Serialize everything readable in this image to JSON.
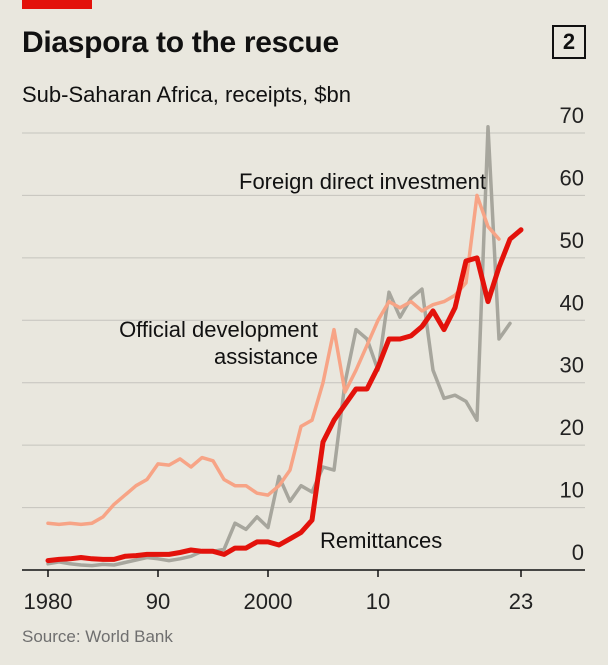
{
  "header": {
    "title": "Diaspora to the rescue",
    "chart_number": "2"
  },
  "subtitle": "Sub-Saharan Africa, receipts, $bn",
  "source": "Source: World Bank",
  "colors": {
    "fdi": "#a7a69d",
    "oda": "#f7a486",
    "remittances": "#e3120b",
    "background": "#e9e7de",
    "grid": "#c5c4bd"
  },
  "chart_data": {
    "type": "line",
    "title": "Diaspora to the rescue",
    "subtitle": "Sub-Saharan Africa, receipts, $bn",
    "xlabel": "",
    "ylabel": "$bn",
    "xlim": [
      1980,
      2023
    ],
    "ylim": [
      0,
      70
    ],
    "x_ticks": [
      1980,
      1990,
      2000,
      2010,
      2023
    ],
    "x_tick_labels": [
      "1980",
      "90",
      "2000",
      "10",
      "23"
    ],
    "y_ticks": [
      0,
      10,
      20,
      30,
      40,
      50,
      60,
      70
    ],
    "y_tick_labels": [
      "0",
      "10",
      "20",
      "30",
      "40",
      "50",
      "60",
      "70"
    ],
    "annotations": {
      "fdi": "Foreign direct investment",
      "oda_line1": "Official development",
      "oda_line2": "assistance",
      "remittances": "Remittances"
    },
    "x": [
      1980,
      1981,
      1982,
      1983,
      1984,
      1985,
      1986,
      1987,
      1988,
      1989,
      1990,
      1991,
      1992,
      1993,
      1994,
      1995,
      1996,
      1997,
      1998,
      1999,
      2000,
      2001,
      2002,
      2003,
      2004,
      2005,
      2006,
      2007,
      2008,
      2009,
      2010,
      2011,
      2012,
      2013,
      2014,
      2015,
      2016,
      2017,
      2018,
      2019,
      2020,
      2021,
      2022,
      2023
    ],
    "series": [
      {
        "name": "Foreign direct investment",
        "key": "fdi",
        "values": [
          1.0,
          1.3,
          1.0,
          0.8,
          0.7,
          0.9,
          0.8,
          1.2,
          1.6,
          2.0,
          1.8,
          1.5,
          1.8,
          2.2,
          3.0,
          3.0,
          3.3,
          7.5,
          6.5,
          8.5,
          6.8,
          15.0,
          11.0,
          13.5,
          12.5,
          16.5,
          16.0,
          30.0,
          38.5,
          37.0,
          32.0,
          44.5,
          40.5,
          43.5,
          45.0,
          32.0,
          27.5,
          28.0,
          27.0,
          24.0,
          71.0,
          37.0,
          39.5,
          null
        ]
      },
      {
        "name": "Official development assistance",
        "key": "oda",
        "values": [
          7.5,
          7.3,
          7.5,
          7.3,
          7.5,
          8.5,
          10.5,
          12.0,
          13.5,
          14.5,
          17.0,
          16.8,
          17.8,
          16.5,
          18.0,
          17.5,
          14.5,
          13.5,
          13.5,
          12.3,
          12.0,
          13.5,
          16.0,
          23.0,
          24.0,
          30.0,
          38.5,
          28.5,
          32.0,
          36.0,
          40.0,
          43.0,
          42.0,
          43.0,
          41.5,
          42.5,
          43.0,
          44.0,
          46.0,
          60.0,
          55.0,
          53.0,
          null,
          null
        ]
      },
      {
        "name": "Remittances",
        "key": "remittances",
        "values": [
          1.5,
          1.7,
          1.8,
          2.0,
          1.8,
          1.7,
          1.7,
          2.2,
          2.3,
          2.5,
          2.5,
          2.5,
          2.8,
          3.2,
          3.0,
          3.0,
          2.5,
          3.5,
          3.5,
          4.5,
          4.5,
          4.0,
          5.0,
          6.0,
          8.0,
          20.5,
          24.0,
          26.5,
          29.0,
          29.0,
          32.5,
          37.0,
          37.0,
          37.5,
          39.0,
          41.5,
          38.5,
          42.0,
          49.5,
          50.0,
          43.0,
          48.5,
          53.0,
          54.5
        ]
      }
    ]
  }
}
